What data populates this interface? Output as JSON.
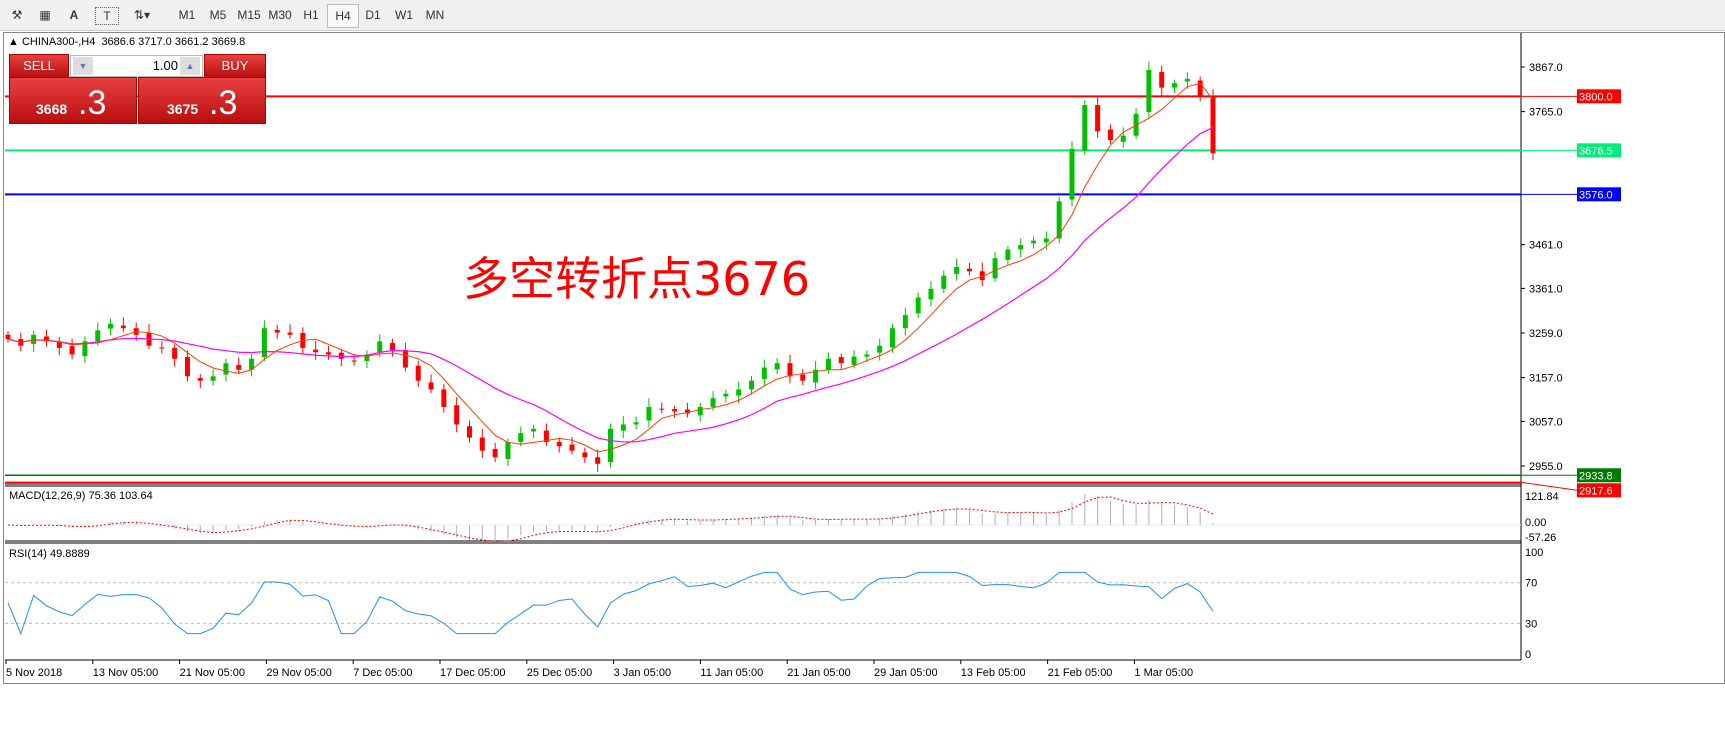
{
  "toolbar": {
    "tools": [
      "line-studies-icon",
      "fibonacci-icon",
      "text-icon",
      "text-label-icon",
      "arrows-icon"
    ],
    "timeframes": [
      "M1",
      "M5",
      "M15",
      "M30",
      "H1",
      "H4",
      "D1",
      "W1",
      "MN"
    ],
    "active_timeframe": "H4"
  },
  "header": {
    "symbol": "CHINA300-,H4",
    "open": "3686.6",
    "high": "3717.0",
    "low": "3661.2",
    "close": "3669.8"
  },
  "trade_panel": {
    "sell_label": "SELL",
    "buy_label": "BUY",
    "lot": "1.00",
    "sell_big": "3668",
    "sell_frac": ".3",
    "buy_big": "3675",
    "buy_frac": ".3"
  },
  "annotation": "多空转折点3676",
  "colors": {
    "bull": "#00c000",
    "bear": "#ff0000",
    "ma_fast": "#ff3c00",
    "ma_slow": "#ff00ff",
    "rsi": "#1e90ff",
    "hline_resistance": "#ff0000",
    "hline_pivot": "#00ff7f",
    "hline_support": "#0000ff",
    "bid_line": "#008000",
    "ask_line": "#ff0000"
  },
  "chart_data": {
    "type": "candlestick",
    "price_axis_ticks": [
      "3867.0",
      "3765.0",
      "3461.0",
      "3361.0",
      "3259.0",
      "3157.0",
      "3057.0",
      "2955.0"
    ],
    "ylim": [
      2925,
      3925
    ],
    "hlines": [
      {
        "value": 3800.0,
        "label": "3800.0",
        "color": "#ff0000"
      },
      {
        "value": 3676.5,
        "label": "3676.5",
        "color": "#00ee77"
      },
      {
        "value": 3576.0,
        "label": "3576.0",
        "color": "#0000ff"
      },
      {
        "value": 2933.8,
        "label": "2933.8",
        "color": "#007a00"
      },
      {
        "value": 2917.6,
        "label": "2917.6",
        "color": "#ff0000"
      }
    ],
    "date_labels": [
      "5 Nov 2018",
      "13 Nov 05:00",
      "21 Nov 05:00",
      "29 Nov 05:00",
      "7 Dec 05:00",
      "17 Dec 05:00",
      "25 Dec 05:00",
      "3 Jan 05:00",
      "11 Jan 05:00",
      "21 Jan 05:00",
      "29 Jan 05:00",
      "13 Feb 05:00",
      "21 Feb 05:00",
      "1 Mar 05:00"
    ],
    "closes": [
      3245,
      3230,
      3255,
      3240,
      3225,
      3210,
      3240,
      3265,
      3280,
      3270,
      3255,
      3230,
      3225,
      3200,
      3160,
      3150,
      3160,
      3190,
      3175,
      3200,
      3270,
      3260,
      3255,
      3225,
      3215,
      3210,
      3200,
      3195,
      3210,
      3240,
      3220,
      3180,
      3150,
      3130,
      3090,
      3050,
      3020,
      2990,
      2975,
      3010,
      3030,
      3040,
      3010,
      3000,
      2990,
      2975,
      2960,
      3040,
      3050,
      3055,
      3090,
      3085,
      3080,
      3075,
      3090,
      3110,
      3120,
      3130,
      3150,
      3180,
      3190,
      3160,
      3150,
      3175,
      3200,
      3190,
      3205,
      3210,
      3230,
      3270,
      3300,
      3340,
      3360,
      3390,
      3410,
      3400,
      3380,
      3430,
      3450,
      3460,
      3470,
      3475,
      3560,
      3680,
      3780,
      3720,
      3700,
      3710,
      3760,
      3860,
      3820,
      3830,
      3840,
      3800,
      3670
    ],
    "macd": {
      "label": "MACD(12,26,9) 75.36 103.64",
      "ticks": [
        "121.84",
        "0.00",
        "-57.26"
      ]
    },
    "rsi": {
      "label": "RSI(14) 49.8889",
      "ticks": [
        "100",
        "70",
        "30",
        "0"
      ]
    }
  }
}
